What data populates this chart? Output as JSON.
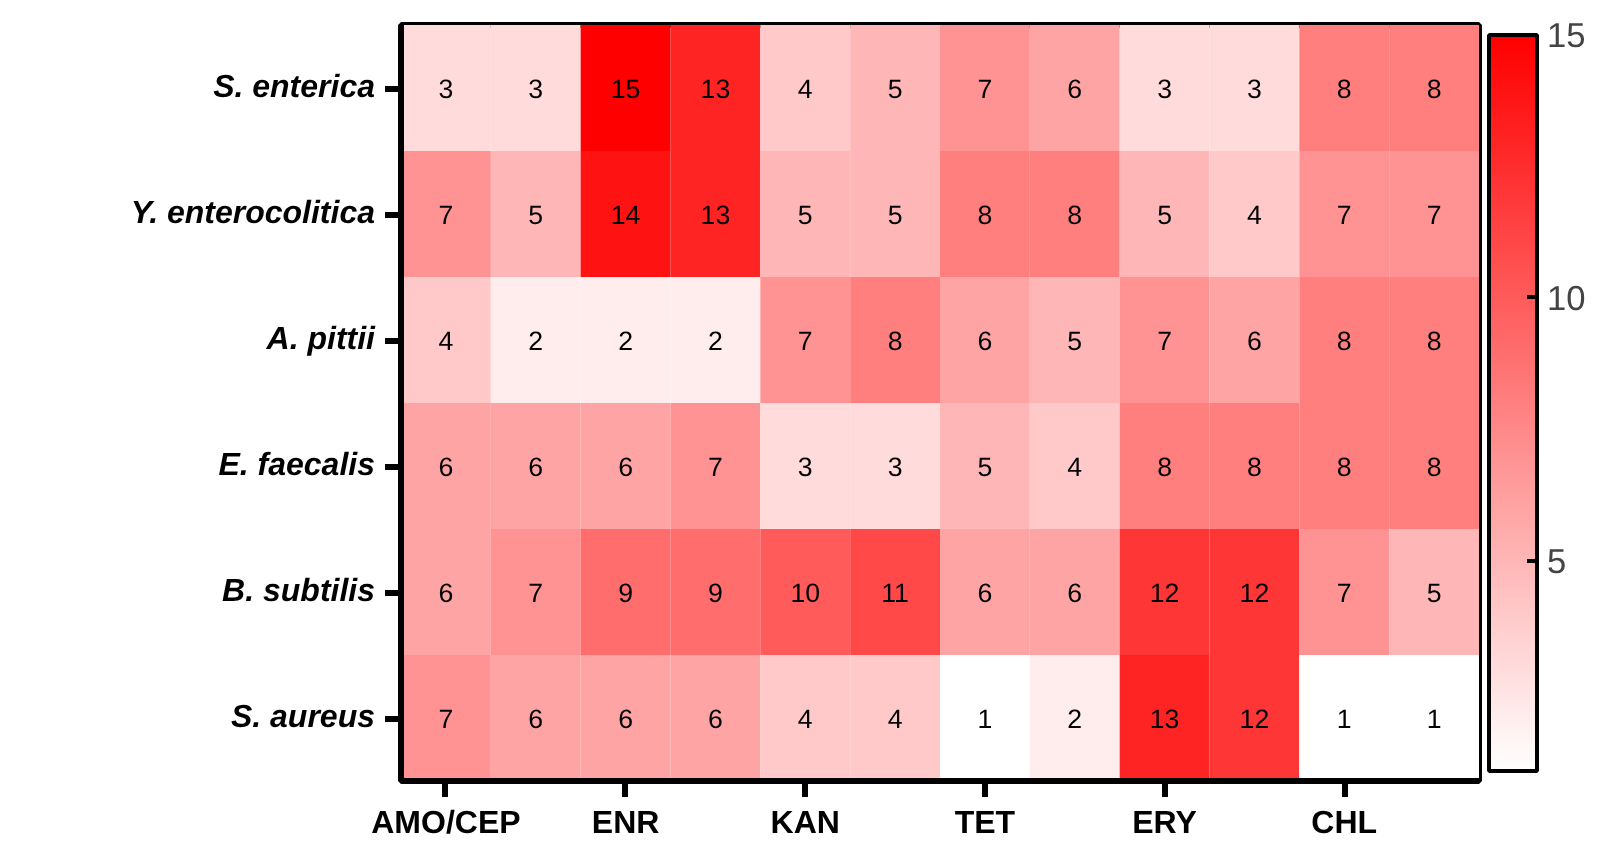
{
  "chart_data": {
    "type": "heatmap",
    "categories": [
      "AMO/CEP",
      null,
      "ENR",
      null,
      "KAN",
      null,
      "TET",
      null,
      "ERY",
      null,
      "CHL",
      null
    ],
    "y_categories": [
      "S. enterica",
      "Y. enterocolitica",
      "A. pittii",
      "E. faecalis",
      "B. subtilis",
      "S. aureus"
    ],
    "cells": [
      [
        3,
        3,
        15,
        13,
        4,
        5,
        7,
        6,
        3,
        3,
        8,
        8
      ],
      [
        7,
        5,
        14,
        13,
        5,
        5,
        8,
        8,
        5,
        4,
        7,
        7
      ],
      [
        4,
        2,
        2,
        2,
        7,
        8,
        6,
        5,
        7,
        6,
        8,
        8
      ],
      [
        6,
        6,
        6,
        7,
        3,
        3,
        5,
        4,
        8,
        8,
        8,
        8
      ],
      [
        6,
        7,
        9,
        9,
        10,
        11,
        6,
        6,
        12,
        12,
        7,
        5
      ],
      [
        7,
        6,
        6,
        6,
        4,
        4,
        1,
        2,
        13,
        12,
        1,
        1
      ]
    ],
    "clim": [
      1,
      15
    ],
    "cticks": [
      5,
      10,
      15
    ],
    "data_labels": true
  }
}
